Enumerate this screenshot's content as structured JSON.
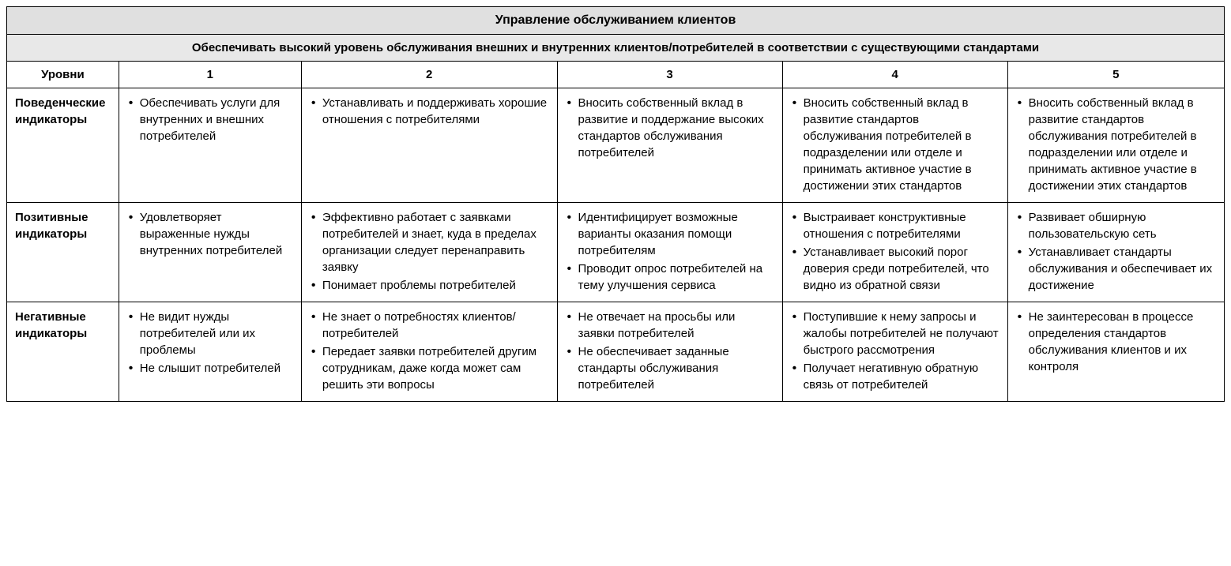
{
  "table": {
    "title": "Управление обслуживанием клиентов",
    "subtitle": "Обеспечивать высокий уровень обслуживания внешних и внутренних клиентов/потребителей в соответствии с существующими стандартами",
    "columns": [
      "Уровни",
      "1",
      "2",
      "3",
      "4",
      "5"
    ],
    "rows": [
      {
        "header": "Поведенческие индикаторы",
        "cells": [
          [
            "Обеспечивать услуги для внутренних и внешних потребителей"
          ],
          [
            "Устанавливать и поддерживать хорошие отношения с потребителями"
          ],
          [
            "Вносить собственный вклад в развитие и поддержание высоких стандартов обслуживания потребителей"
          ],
          [
            "Вносить собственный вклад в развитие стандартов обслуживания потребителей в подразделении или отделе и принимать активное участие в достижении этих стандартов"
          ],
          [
            "Вносить собственный вклад в развитие стандартов обслуживания потребителей в подразделении или отделе и принимать активное участие в достижении этих стандартов"
          ]
        ]
      },
      {
        "header": "Позитивные индикаторы",
        "cells": [
          [
            "Удовлетворяет выраженные нужды внутренних потребителей"
          ],
          [
            "Эффективно работает с заявками потребителей и знает, куда в пределах организации следует перенаправить заявку",
            "Понимает проблемы потребителей"
          ],
          [
            "Идентифицирует возможные варианты оказания помощи потребителям",
            "Проводит опрос потребителей на тему улучшения сервиса"
          ],
          [
            "Выстраивает конструктивные отношения с потребителями",
            "Устанавливает высокий порог доверия среди потребителей, что видно из обратной связи"
          ],
          [
            "Развивает обширную пользовательскую сеть",
            "Устанавливает стандарты обслуживания и обеспечивает их достижение"
          ]
        ]
      },
      {
        "header": "Негативные индикаторы",
        "cells": [
          [
            "Не видит нужды потребителей или их проблемы",
            "Не слышит потребителей"
          ],
          [
            "Не знает о потребностях клиентов/потребителей",
            "Передает заявки потребителей другим сотрудникам, даже когда может сам решить эти вопросы"
          ],
          [
            "Не отвечает на просьбы или заявки потребителей",
            "Не обеспечивает заданные стандарты обслуживания потребителей"
          ],
          [
            "Поступившие к нему запросы и жалобы потребителей не получают быстрого рассмотрения",
            "Получает негативную обратную связь от потребителей"
          ],
          [
            "Не заинтересован в процессе определения стандартов обслуживания клиентов и их контроля"
          ]
        ]
      }
    ],
    "styling": {
      "type": "table",
      "border_color": "#000000",
      "header_bg_color": "#e0e0e0",
      "subheader_bg_color": "#e8e8e8",
      "text_color": "#000000",
      "background_color": "#ffffff",
      "font_family": "Arial, Helvetica, sans-serif",
      "title_fontsize": 16,
      "cell_fontsize": 15,
      "column_widths_pct": [
        9.2,
        15,
        21,
        18.5,
        18.5,
        17.8
      ],
      "bullet_style": "disc"
    }
  }
}
